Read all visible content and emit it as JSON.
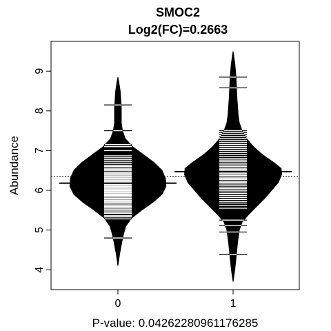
{
  "chart_data": {
    "type": "beanplot",
    "title": "SMOC2",
    "subtitle": "Log2(FC)=0.2663",
    "xlabel": "P-value: 0.0426228096117628​5",
    "ylabel": "Abundance",
    "categories": [
      "0",
      "1"
    ],
    "ylim": [
      3.5,
      9.75
    ],
    "yticks": [
      4,
      5,
      6,
      7,
      8,
      9
    ],
    "overall_mean": 6.35,
    "groups": [
      {
        "name": "0",
        "mean": 6.18,
        "range": [
          4.1,
          8.85
        ],
        "density": [
          [
            4.1,
            0.0
          ],
          [
            4.4,
            0.03
          ],
          [
            4.7,
            0.07
          ],
          [
            4.9,
            0.1
          ],
          [
            5.1,
            0.14
          ],
          [
            5.3,
            0.24
          ],
          [
            5.5,
            0.42
          ],
          [
            5.7,
            0.62
          ],
          [
            5.9,
            0.78
          ],
          [
            6.1,
            0.85
          ],
          [
            6.3,
            0.84
          ],
          [
            6.5,
            0.78
          ],
          [
            6.7,
            0.64
          ],
          [
            6.9,
            0.45
          ],
          [
            7.1,
            0.26
          ],
          [
            7.3,
            0.13
          ],
          [
            7.5,
            0.08
          ],
          [
            7.7,
            0.06
          ],
          [
            7.9,
            0.06
          ],
          [
            8.1,
            0.06
          ],
          [
            8.3,
            0.05
          ],
          [
            8.5,
            0.04
          ],
          [
            8.7,
            0.02
          ],
          [
            8.85,
            0.0
          ]
        ],
        "observations": [
          4.8,
          5.28,
          5.33,
          5.36,
          5.42,
          5.45,
          5.48,
          5.52,
          5.55,
          5.58,
          5.6,
          5.63,
          5.66,
          5.7,
          5.72,
          5.75,
          5.78,
          5.8,
          5.83,
          5.86,
          5.88,
          5.9,
          5.93,
          5.95,
          5.98,
          6.0,
          6.02,
          6.05,
          6.08,
          6.1,
          6.12,
          6.15,
          6.18,
          6.2,
          6.22,
          6.25,
          6.28,
          6.3,
          6.33,
          6.35,
          6.38,
          6.4,
          6.43,
          6.46,
          6.5,
          6.53,
          6.56,
          6.6,
          6.63,
          6.67,
          6.72,
          6.77,
          6.82,
          6.87,
          7.0,
          7.1,
          7.15,
          7.5,
          8.15
        ]
      },
      {
        "name": "1",
        "mean": 6.47,
        "range": [
          3.7,
          9.5
        ],
        "density": [
          [
            3.7,
            0.0
          ],
          [
            4.0,
            0.03
          ],
          [
            4.4,
            0.06
          ],
          [
            4.7,
            0.08
          ],
          [
            5.0,
            0.11
          ],
          [
            5.2,
            0.16
          ],
          [
            5.4,
            0.28
          ],
          [
            5.6,
            0.42
          ],
          [
            5.8,
            0.56
          ],
          [
            6.0,
            0.68
          ],
          [
            6.2,
            0.8
          ],
          [
            6.4,
            0.86
          ],
          [
            6.55,
            0.85
          ],
          [
            6.7,
            0.72
          ],
          [
            6.9,
            0.52
          ],
          [
            7.1,
            0.36
          ],
          [
            7.3,
            0.24
          ],
          [
            7.5,
            0.16
          ],
          [
            7.7,
            0.11
          ],
          [
            7.9,
            0.09
          ],
          [
            8.1,
            0.08
          ],
          [
            8.3,
            0.07
          ],
          [
            8.6,
            0.06
          ],
          [
            8.9,
            0.05
          ],
          [
            9.2,
            0.03
          ],
          [
            9.5,
            0.0
          ]
        ],
        "observations": [
          4.38,
          4.95,
          5.12,
          5.25,
          5.55,
          5.62,
          5.68,
          5.72,
          5.77,
          5.82,
          5.87,
          5.92,
          5.96,
          6.0,
          6.04,
          6.08,
          6.12,
          6.16,
          6.2,
          6.23,
          6.27,
          6.3,
          6.33,
          6.37,
          6.4,
          6.43,
          6.46,
          6.5,
          6.53,
          6.56,
          6.6,
          6.64,
          6.68,
          6.72,
          6.76,
          6.8,
          6.85,
          6.9,
          6.95,
          7.0,
          7.05,
          7.1,
          7.15,
          7.2,
          7.25,
          7.3,
          7.35,
          7.4,
          7.45,
          7.5,
          8.58,
          8.85
        ]
      }
    ]
  }
}
